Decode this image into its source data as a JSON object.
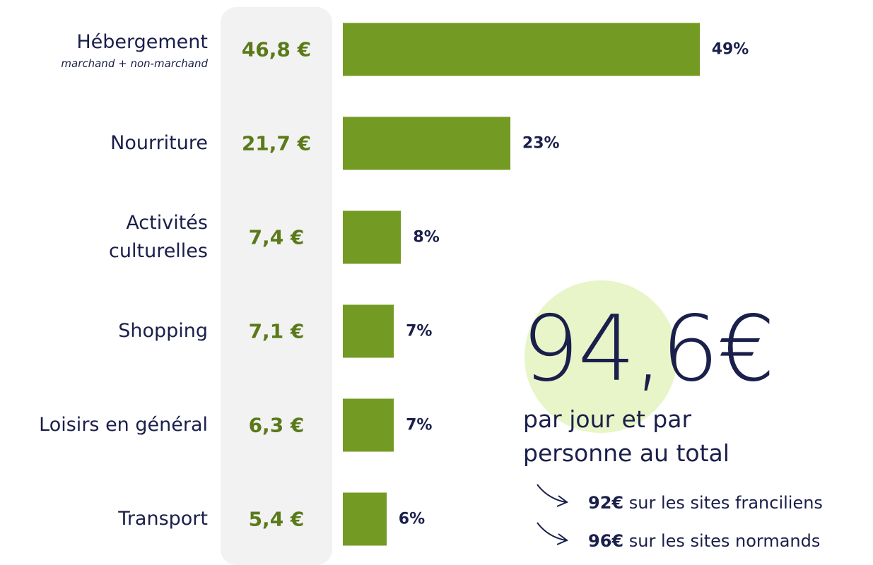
{
  "chart_data": {
    "type": "bar",
    "orientation": "horizontal",
    "categories": [
      "Hébergement",
      "Nourriture",
      "Activités\nculturelles",
      "Shopping",
      "Loisirs en général",
      "Transport"
    ],
    "category_notes": [
      "marchand + non-marchand",
      null,
      null,
      null,
      null,
      null
    ],
    "amounts": [
      46.8,
      21.7,
      7.4,
      7.1,
      6.3,
      5.4
    ],
    "amount_labels": [
      "46,8 €",
      "21,7 €",
      "7,4 €",
      "7,1 €",
      "6,3 €",
      "5,4 €"
    ],
    "values": [
      49,
      23,
      8,
      7,
      7,
      6
    ],
    "value_labels": [
      "49%",
      "23%",
      "8%",
      "7%",
      "7%",
      "6%"
    ],
    "color": "#739a22",
    "total": 94.6,
    "total_label": "94,6€",
    "total_caption": "par jour et par personne au total",
    "notes": [
      {
        "value": 92,
        "label": "92€",
        "text": "sur les sites franciliens"
      },
      {
        "value": 96,
        "label": "96€",
        "text": "sur les sites normands"
      }
    ]
  }
}
